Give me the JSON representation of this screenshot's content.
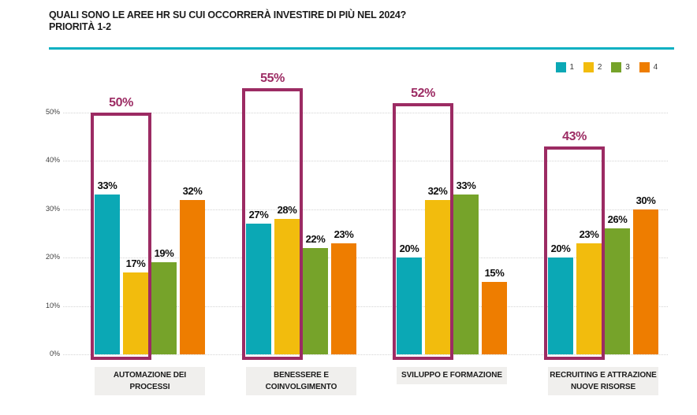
{
  "header": {
    "title_line1": "QUALI SONO LE AREE HR SU CUI OCCORRERÀ INVESTIRE DI PIÙ NEL 2024?",
    "title_line2": "PRIORITÀ 1-2"
  },
  "colors": {
    "divider": "#0cb0c2",
    "grid": "#d4d4d4",
    "category_label_bg": "#f0efed"
  },
  "chart_data": {
    "type": "bar",
    "title": "QUALI SONO LE AREE HR SU CUI OCCORRERÀ INVESTIRE DI PIÙ NEL 2024? PRIORITÀ 1-2",
    "xlabel": "",
    "ylabel": "",
    "ylim": [
      0,
      50
    ],
    "y_ticks": [
      "0%",
      "10%",
      "20%",
      "30%",
      "40%",
      "50%"
    ],
    "grid": "dotted-horizontal",
    "legend_position": "top-right",
    "value_suffix": "%",
    "categories": [
      [
        "AUTOMAZIONE DEI",
        "PROCESSI"
      ],
      [
        "BENESSERE E",
        "COINVOLGIMENTO"
      ],
      [
        "SVILUPPO E FORMAZIONE"
      ],
      [
        "RECRUITING E ATTRAZIONE",
        "NUOVE RISORSE"
      ]
    ],
    "series": [
      {
        "name": "1",
        "color": "#0ba8b5",
        "values": [
          33,
          27,
          20,
          20
        ]
      },
      {
        "name": "2",
        "color": "#f2bc0d",
        "values": [
          17,
          28,
          32,
          23
        ]
      },
      {
        "name": "3",
        "color": "#76a32a",
        "values": [
          19,
          22,
          33,
          26
        ]
      },
      {
        "name": "4",
        "color": "#ee7d00",
        "values": [
          32,
          23,
          15,
          30
        ]
      }
    ],
    "highlights": {
      "description": "sum of priority 1 and 2 bars outlined per group",
      "color": "#9c2b63",
      "values": [
        50,
        55,
        52,
        43
      ]
    }
  }
}
